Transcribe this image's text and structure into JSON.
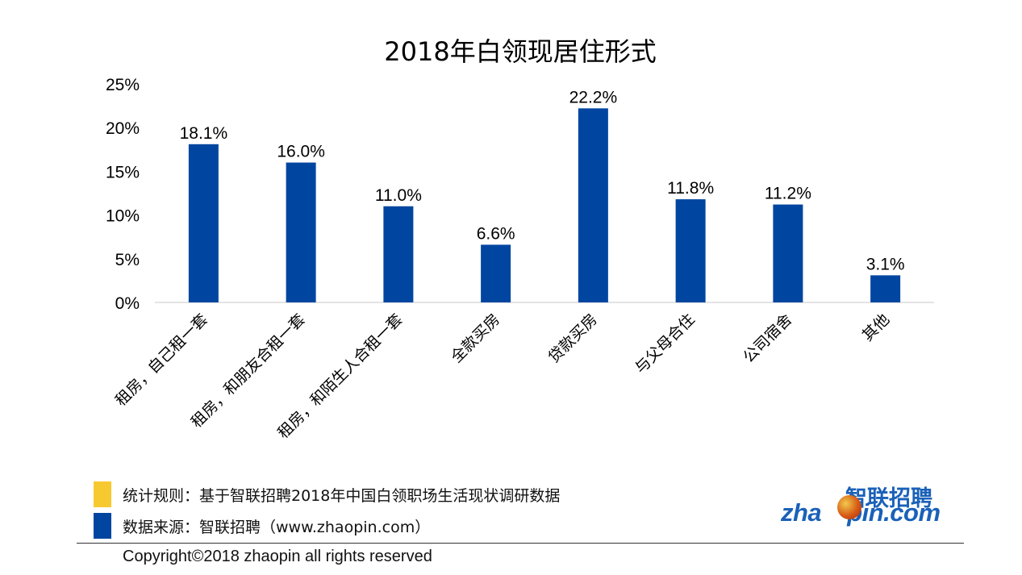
{
  "chart_data": {
    "type": "bar",
    "title": "2018年白领现居住形式",
    "categories": [
      "租房，自己租一套",
      "租房，和朋友合租一套",
      "租房，和陌生人合租一套",
      "全款买房",
      "贷款买房",
      "与父母合住",
      "公司宿舍",
      "其他"
    ],
    "values": [
      18.1,
      16.0,
      11.0,
      6.6,
      22.2,
      11.8,
      11.2,
      3.1
    ],
    "value_labels": [
      "18.1%",
      "16.0%",
      "11.0%",
      "6.6%",
      "22.2%",
      "11.8%",
      "11.2%",
      "3.1%"
    ],
    "ylim": [
      0,
      25
    ],
    "yticks": [
      0,
      5,
      10,
      15,
      20,
      25
    ],
    "ytick_labels": [
      "0%",
      "5%",
      "10%",
      "15%",
      "20%",
      "25%"
    ],
    "xlabel": "",
    "ylabel": "",
    "grid": false,
    "bar_color": "#0046A0"
  },
  "legend": [
    {
      "text": "统计规则：基于智联招聘2018年中国白领职场生活现状调研数据",
      "color": "#F7C930"
    },
    {
      "text": "数据来源：智联招聘（www.zhaopin.com）",
      "color": "#0046A0"
    }
  ],
  "footer": {
    "copyright": "Copyright©2018 zhaopin all rights reserved"
  },
  "logo": {
    "cn": "智联招聘",
    "en_left": "zha",
    "en_right": "pin.com",
    "icon": "zhaopin-ball-icon"
  }
}
